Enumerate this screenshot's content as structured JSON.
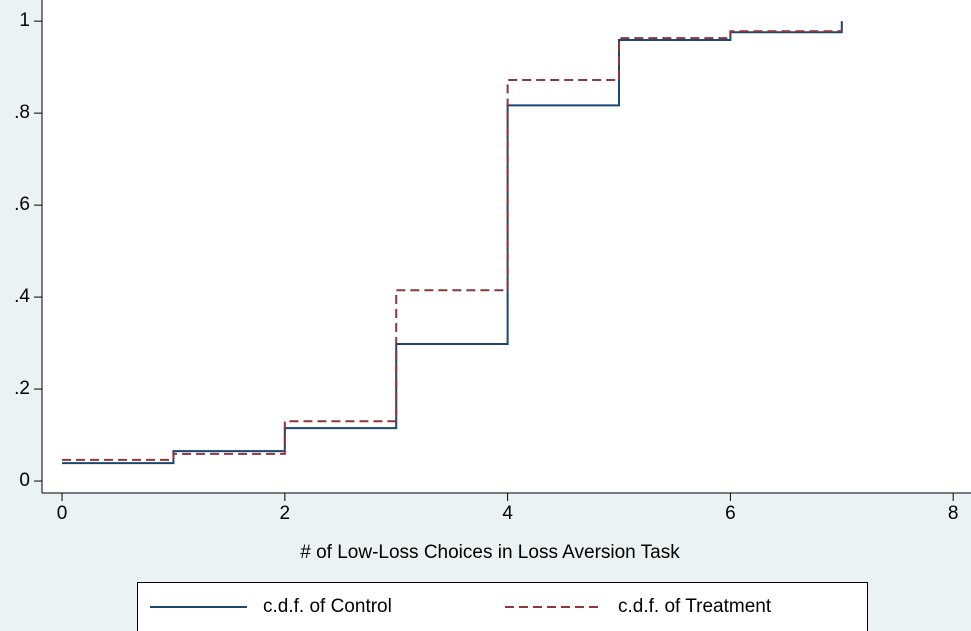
{
  "chart_data": {
    "type": "step",
    "x_label": "# of Low-Loss Choices in Loss Aversion Task",
    "x": [
      0,
      1,
      2,
      3,
      4,
      5,
      6,
      7
    ],
    "series": [
      {
        "name": "c.d.f. of  Control",
        "color": "#1a476f",
        "dash": "solid",
        "values": [
          0.039,
          0.065,
          0.115,
          0.298,
          0.817,
          0.959,
          0.976,
          1.0
        ]
      },
      {
        "name": "c.d.f. of  Treatment",
        "color": "#90353b",
        "dash": "dashed",
        "values": [
          0.046,
          0.059,
          0.13,
          0.415,
          0.872,
          0.963,
          0.978,
          0.978
        ]
      }
    ],
    "xlim": [
      -0.18,
      8.16
    ],
    "ylim": [
      -0.026,
      1.046
    ],
    "xticks": [
      0,
      2,
      4,
      6,
      8
    ],
    "yticks": [
      0,
      {
        "value": 0.2,
        "label": ".2"
      },
      {
        "value": 0.4,
        "label": ".4"
      },
      {
        "value": 0.6,
        "label": ".6"
      },
      {
        "value": 0.8,
        "label": ".8"
      },
      1
    ]
  }
}
